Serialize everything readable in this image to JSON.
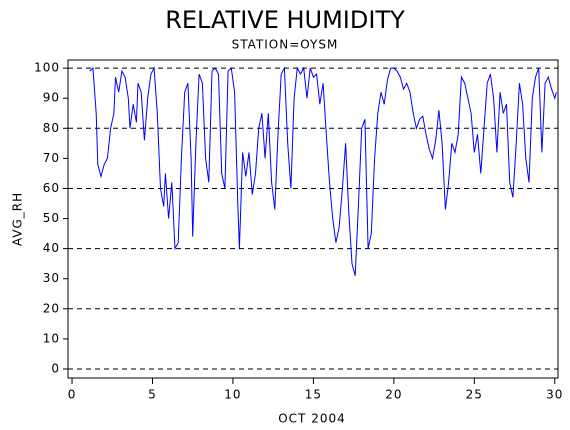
{
  "chart_data": {
    "type": "line",
    "title": "RELATIVE HUMIDITY",
    "subtitle": "STATION=OYSM",
    "x_label": "OCT 2004",
    "y_label": "AVG_RH",
    "xlim": [
      -0.25,
      30.2
    ],
    "ylim": [
      -3,
      102.7
    ],
    "xticks": [
      0,
      5,
      10,
      15,
      20,
      25,
      30
    ],
    "yticks": [
      0,
      10,
      20,
      30,
      40,
      50,
      60,
      70,
      80,
      90,
      100
    ],
    "grid": true,
    "color": "#0000ff",
    "x": [
      1.1,
      1.3,
      1.5,
      1.6,
      1.8,
      2.0,
      2.2,
      2.4,
      2.6,
      2.7,
      2.9,
      3.1,
      3.3,
      3.5,
      3.6,
      3.8,
      4.0,
      4.1,
      4.3,
      4.5,
      4.7,
      4.9,
      5.1,
      5.3,
      5.5,
      5.7,
      5.8,
      6.0,
      6.2,
      6.4,
      6.6,
      6.8,
      7.0,
      7.2,
      7.4,
      7.5,
      7.7,
      7.9,
      8.1,
      8.3,
      8.5,
      8.7,
      8.9,
      9.1,
      9.3,
      9.5,
      9.7,
      9.9,
      10.1,
      10.3,
      10.4,
      10.6,
      10.8,
      11.0,
      11.2,
      11.4,
      11.6,
      11.8,
      12.0,
      12.2,
      12.4,
      12.6,
      12.8,
      13.0,
      13.2,
      13.4,
      13.6,
      13.8,
      14.0,
      14.2,
      14.4,
      14.6,
      14.8,
      15.0,
      15.2,
      15.4,
      15.6,
      15.8,
      16.0,
      16.2,
      16.4,
      16.6,
      16.8,
      17.0,
      17.2,
      17.4,
      17.6,
      17.8,
      18.0,
      18.2,
      18.4,
      18.6,
      18.8,
      19.0,
      19.2,
      19.4,
      19.6,
      19.8,
      20.0,
      20.2,
      20.4,
      20.6,
      20.8,
      21.0,
      21.2,
      21.4,
      21.6,
      21.8,
      22.0,
      22.2,
      22.4,
      22.6,
      22.8,
      23.0,
      23.2,
      23.4,
      23.6,
      23.8,
      24.0,
      24.2,
      24.4,
      24.6,
      24.8,
      25.0,
      25.2,
      25.4,
      25.6,
      25.8,
      26.0,
      26.2,
      26.4,
      26.6,
      26.8,
      27.0,
      27.2,
      27.4,
      27.6,
      27.8,
      28.0,
      28.2,
      28.4,
      28.6,
      28.8,
      29.0,
      29.2,
      29.4,
      29.6,
      29.8,
      30.0,
      30.1
    ],
    "values": [
      99,
      100,
      85,
      68,
      64,
      68,
      70,
      80,
      85,
      97,
      92,
      99,
      97,
      90,
      80,
      88,
      82,
      95,
      92,
      76,
      90,
      98,
      100,
      85,
      60,
      54,
      65,
      50,
      62,
      40,
      42,
      70,
      92,
      95,
      70,
      44,
      75,
      98,
      95,
      70,
      62,
      99,
      100,
      98,
      65,
      60,
      99,
      100,
      92,
      55,
      40,
      72,
      64,
      72,
      58,
      65,
      80,
      85,
      70,
      85,
      62,
      53,
      78,
      98,
      100,
      75,
      60,
      90,
      100,
      98,
      100,
      90,
      100,
      97,
      98,
      88,
      95,
      78,
      62,
      50,
      42,
      47,
      60,
      75,
      52,
      35,
      31,
      55,
      80,
      83,
      40,
      45,
      70,
      85,
      92,
      88,
      96,
      100,
      100,
      99,
      97,
      93,
      95,
      92,
      85,
      80,
      83,
      84,
      78,
      73,
      70,
      76,
      86,
      75,
      53,
      62,
      75,
      72,
      78,
      97,
      95,
      90,
      85,
      72,
      78,
      65,
      80,
      95,
      98,
      90,
      72,
      92,
      85,
      88,
      62,
      57,
      75,
      95,
      88,
      70,
      62,
      90,
      97,
      100,
      72,
      95,
      97,
      93,
      90,
      92
    ]
  }
}
